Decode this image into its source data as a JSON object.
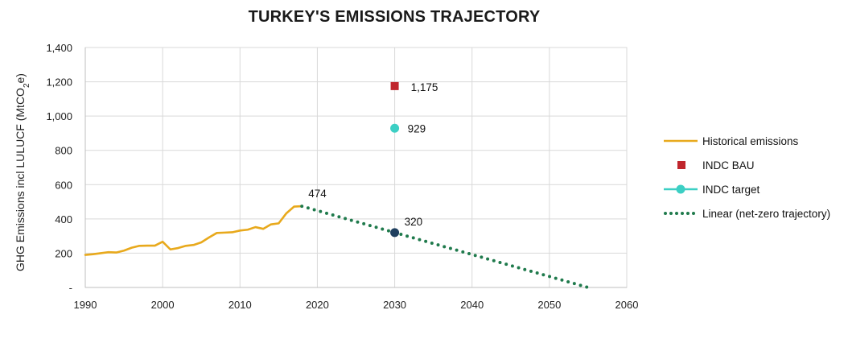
{
  "chart_data": {
    "type": "line",
    "title": "TURKEY'S EMISSIONS TRAJECTORY",
    "xlabel": "",
    "ylabel": "GHG Emissions incl LULUCF (MtCO2e)",
    "ylabel_parts": [
      "GHG Emissions incl LULUCF (MtCO",
      "2",
      "e)"
    ],
    "xlim": [
      1990,
      2060
    ],
    "ylim": [
      0,
      1400
    ],
    "x_ticks": [
      {
        "value": 1990,
        "label": "1990"
      },
      {
        "value": 2000,
        "label": "2000"
      },
      {
        "value": 2010,
        "label": "2010"
      },
      {
        "value": 2020,
        "label": "2020"
      },
      {
        "value": 2030,
        "label": "2030"
      },
      {
        "value": 2040,
        "label": "2040"
      },
      {
        "value": 2050,
        "label": "2050"
      },
      {
        "value": 2060,
        "label": "2060"
      }
    ],
    "y_ticks": [
      {
        "value": 0,
        "label": "-"
      },
      {
        "value": 200,
        "label": "200"
      },
      {
        "value": 400,
        "label": "400"
      },
      {
        "value": 600,
        "label": "600"
      },
      {
        "value": 800,
        "label": "800"
      },
      {
        "value": 1000,
        "label": "1,000"
      },
      {
        "value": 1200,
        "label": "1,200"
      },
      {
        "value": 1400,
        "label": "1,400"
      }
    ],
    "grid": true,
    "legend_position": "right",
    "series": [
      {
        "name": "Historical emissions",
        "style": "line",
        "color": "#E8A91C",
        "x": [
          1990,
          1991,
          1992,
          1993,
          1994,
          1995,
          1996,
          1997,
          1998,
          1999,
          2000,
          2001,
          2002,
          2003,
          2004,
          2005,
          2006,
          2007,
          2008,
          2009,
          2010,
          2011,
          2012,
          2013,
          2014,
          2015,
          2016,
          2017,
          2018
        ],
        "y": [
          190,
          194,
          200,
          206,
          204,
          215,
          232,
          243,
          244,
          244,
          267,
          222,
          230,
          243,
          248,
          263,
          292,
          318,
          320,
          322,
          332,
          337,
          352,
          342,
          368,
          374,
          433,
          472,
          474
        ]
      },
      {
        "name": "INDC BAU",
        "style": "square",
        "color": "#C0262D",
        "x": [
          2030
        ],
        "y": [
          1175
        ]
      },
      {
        "name": "INDC target",
        "style": "circle",
        "color": "#3CCFC4",
        "x": [
          2030
        ],
        "y": [
          929
        ]
      },
      {
        "name": "Linear (net-zero trajectory)",
        "style": "dotted",
        "color": "#1F7A4C",
        "x": [
          2018,
          2055
        ],
        "y": [
          474,
          0
        ]
      }
    ],
    "extra_points": [
      {
        "x": 2030,
        "y": 320,
        "color": "#1F3F5F"
      }
    ],
    "annotations": [
      {
        "x": 2018,
        "y": 474,
        "label": "474"
      },
      {
        "x": 2030,
        "y": 1175,
        "label": "1,175"
      },
      {
        "x": 2030,
        "y": 929,
        "label": "929"
      },
      {
        "x": 2030,
        "y": 320,
        "label": "320"
      }
    ]
  }
}
